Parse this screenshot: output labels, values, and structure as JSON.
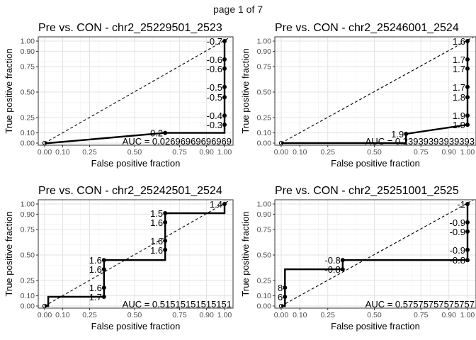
{
  "page_label": "page 1 of 7",
  "chart_data": [
    {
      "type": "line",
      "title": "Pre vs. CON - chr2_25229501_2523",
      "xlabel": "False positive fraction",
      "ylabel": "True positive fraction",
      "xlim": [
        0,
        1
      ],
      "ylim": [
        0,
        1
      ],
      "x_ticks": [
        "0.00",
        "0.10",
        "0.25",
        "0.50",
        "0.75",
        "0.90",
        "1.00"
      ],
      "y_ticks": [
        "0.00",
        "0.10",
        "0.25",
        "0.50",
        "0.75",
        "0.90",
        "1.00"
      ],
      "grid": true,
      "auc_text": "AUC = 0.02696969696969",
      "roc_x": [
        0,
        0.02,
        0.67,
        1,
        1,
        1,
        1,
        1,
        1,
        1,
        1
      ],
      "roc_y": [
        0,
        0,
        0.1,
        0.1,
        0.18,
        0.27,
        0.45,
        0.55,
        0.73,
        0.82,
        1.0
      ],
      "points": [
        {
          "x": 0.67,
          "y": 0.1,
          "label": "-0.2"
        },
        {
          "x": 1,
          "y": 0.18,
          "label": "-0.3"
        },
        {
          "x": 1,
          "y": 0.27,
          "label": "-0.4"
        },
        {
          "x": 1,
          "y": 0.45,
          "label": "-0.5"
        },
        {
          "x": 1,
          "y": 0.55,
          "label": "-0.5"
        },
        {
          "x": 1,
          "y": 0.73,
          "label": "-0.6"
        },
        {
          "x": 1,
          "y": 0.82,
          "label": "-0.6"
        },
        {
          "x": 1,
          "y": 1.0,
          "label": "-0.7"
        }
      ]
    },
    {
      "type": "line",
      "title": "Pre vs. CON - chr2_25246001_2524",
      "xlabel": "False positive fraction",
      "ylabel": "True positive fraction",
      "xlim": [
        0,
        1
      ],
      "ylim": [
        0,
        1
      ],
      "x_ticks": [
        "0.00",
        "0.10",
        "0.25",
        "0.50",
        "0.75",
        "0.90",
        "1.00"
      ],
      "y_ticks": [
        "0.00",
        "0.10",
        "0.25",
        "0.50",
        "0.75",
        "0.90",
        "1.00"
      ],
      "grid": true,
      "auc_text": "AUC = 0.23939393939393",
      "roc_x": [
        0,
        0.02,
        0.67,
        0.67,
        1,
        1,
        1,
        1,
        1,
        1,
        1,
        1
      ],
      "roc_y": [
        0,
        0,
        0,
        0.09,
        0.18,
        0.27,
        0.45,
        0.55,
        0.73,
        0.82,
        1.0,
        1.0
      ],
      "points": [
        {
          "x": 0.67,
          "y": 0.09,
          "label": "1.9"
        },
        {
          "x": 1,
          "y": 0.18,
          "label": "1.9"
        },
        {
          "x": 1,
          "y": 0.27,
          "label": "1.9"
        },
        {
          "x": 1,
          "y": 0.45,
          "label": "1.8"
        },
        {
          "x": 1,
          "y": 0.55,
          "label": "1.7"
        },
        {
          "x": 1,
          "y": 0.73,
          "label": "1.7"
        },
        {
          "x": 1,
          "y": 0.82,
          "label": "1.7"
        },
        {
          "x": 1,
          "y": 1.0,
          "label": "1.6"
        }
      ]
    },
    {
      "type": "line",
      "title": "Pre vs. CON - chr2_25242501_2524",
      "xlabel": "False positive fraction",
      "ylabel": "True positive fraction",
      "xlim": [
        0,
        1
      ],
      "ylim": [
        0,
        1
      ],
      "x_ticks": [
        "0.00",
        "0.10",
        "0.25",
        "0.50",
        "0.75",
        "0.90",
        "1.00"
      ],
      "y_ticks": [
        "0.00",
        "0.10",
        "0.25",
        "0.50",
        "0.75",
        "0.90",
        "1.00"
      ],
      "grid": true,
      "auc_text": "AUC = 0.51515151515151",
      "roc_x": [
        0,
        0.02,
        0.02,
        0.33,
        0.33,
        0.33,
        0.33,
        0.67,
        0.67,
        0.67,
        0.67,
        0.67,
        1,
        1
      ],
      "roc_y": [
        0,
        0,
        0.09,
        0.09,
        0.18,
        0.27,
        0.45,
        0.45,
        0.55,
        0.64,
        0.82,
        0.91,
        0.91,
        1.0
      ],
      "points": [
        {
          "x": 0.33,
          "y": 0.09,
          "label": "1.7"
        },
        {
          "x": 0.33,
          "y": 0.18,
          "label": "1.6"
        },
        {
          "x": 0.33,
          "y": 0.36,
          "label": "1.6"
        },
        {
          "x": 0.33,
          "y": 0.45,
          "label": "1.6"
        },
        {
          "x": 0.67,
          "y": 0.55,
          "label": "1.6"
        },
        {
          "x": 0.67,
          "y": 0.64,
          "label": "1.6"
        },
        {
          "x": 0.67,
          "y": 0.82,
          "label": "1.6"
        },
        {
          "x": 0.67,
          "y": 0.91,
          "label": "1.5"
        },
        {
          "x": 1,
          "y": 1.0,
          "label": "1.4"
        }
      ]
    },
    {
      "type": "line",
      "title": "Pre vs. CON - chr2_25251001_2525",
      "xlabel": "False positive fraction",
      "ylabel": "True positive fraction",
      "xlim": [
        0,
        1
      ],
      "ylim": [
        0,
        1
      ],
      "x_ticks": [
        "0.00",
        "0.10",
        "0.25",
        "0.50",
        "0.75",
        "0.90",
        "1.00"
      ],
      "y_ticks": [
        "0.00",
        "0.10",
        "0.25",
        "0.50",
        "0.75",
        "0.90",
        "1.00"
      ],
      "grid": true,
      "auc_text": "AUC = 0.57575757575757",
      "roc_x": [
        0,
        0.02,
        0.02,
        0.02,
        0.02,
        0.33,
        0.33,
        1,
        1,
        1,
        1,
        1,
        1
      ],
      "roc_y": [
        0,
        0,
        0.09,
        0.18,
        0.36,
        0.36,
        0.45,
        0.45,
        0.55,
        0.73,
        0.82,
        1.0,
        1.0
      ],
      "points": [
        {
          "x": 0.02,
          "y": 0.09,
          "label": "6"
        },
        {
          "x": 0.02,
          "y": 0.18,
          "label": "8"
        },
        {
          "x": 0.33,
          "y": 0.36,
          "label": "-0.8"
        },
        {
          "x": 0.33,
          "y": 0.45,
          "label": "-0.8"
        },
        {
          "x": 1,
          "y": 0.45,
          "label": "-0.8"
        },
        {
          "x": 1,
          "y": 0.55,
          "label": "-0.9"
        },
        {
          "x": 1,
          "y": 0.73,
          "label": "-0.9"
        },
        {
          "x": 1,
          "y": 0.82,
          "label": "-0.9"
        },
        {
          "x": 1,
          "y": 1.0,
          "label": "-1"
        }
      ]
    }
  ]
}
